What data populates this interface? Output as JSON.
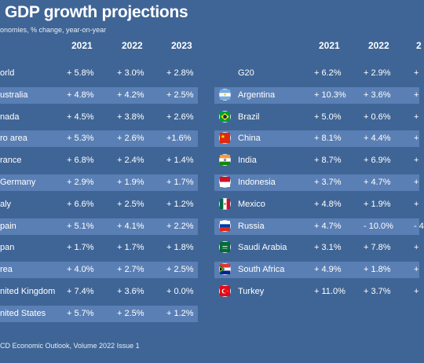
{
  "header": {
    "title": "GDP growth projections",
    "subtitle": "onomies, % change, year-on-year"
  },
  "chart_data": {
    "type": "table",
    "columns": [
      "2021",
      "2022",
      "2023"
    ],
    "right_columns": [
      "2021",
      "2022",
      "2"
    ],
    "left_rows": [
      {
        "name": "orld",
        "values": [
          "+ 5.8%",
          "+ 3.0%",
          "+ 2.8%"
        ]
      },
      {
        "name": "ustralia",
        "values": [
          "+ 4.8%",
          "+ 4.2%",
          "+ 2.5%"
        ]
      },
      {
        "name": "nada",
        "values": [
          "+ 4.5%",
          "+  3.8%",
          "+ 2.6%"
        ]
      },
      {
        "name": "ro area",
        "values": [
          "+ 5.3%",
          "+ 2.6%",
          "+1.6%"
        ]
      },
      {
        "name": "rance",
        "values": [
          "+ 6.8%",
          "+ 2.4%",
          "+ 1.4%"
        ]
      },
      {
        "name": "Germany",
        "values": [
          "+ 2.9%",
          "+ 1.9%",
          "+ 1.7%"
        ]
      },
      {
        "name": "aly",
        "values": [
          "+ 6.6%",
          "+ 2.5%",
          "+ 1.2%"
        ]
      },
      {
        "name": "pain",
        "values": [
          "+ 5.1%",
          "+ 4.1%",
          "+ 2.2%"
        ]
      },
      {
        "name": "pan",
        "values": [
          "+ 1.7%",
          "+ 1.7%",
          "+ 1.8%"
        ]
      },
      {
        "name": "rea",
        "values": [
          "+ 4.0%",
          "+ 2.7%",
          "+ 2.5%"
        ]
      },
      {
        "name": "nited Kingdom",
        "values": [
          "+ 7.4%",
          "+ 3.6%",
          "+ 0.0%"
        ]
      },
      {
        "name": "nited States",
        "values": [
          "+ 5.7%",
          "+ 2.5%",
          "+ 1.2%"
        ]
      }
    ],
    "right_rows": [
      {
        "name": "G20",
        "flag": "",
        "values": [
          "+ 6.2%",
          "+ 2.9%",
          "+"
        ]
      },
      {
        "name": "Argentina",
        "flag": "argentina",
        "values": [
          "+ 10.3%",
          "+ 3.6%",
          "+"
        ]
      },
      {
        "name": "Brazil",
        "flag": "brazil",
        "values": [
          "+ 5.0%",
          "+ 0.6%",
          "+"
        ]
      },
      {
        "name": "China",
        "flag": "china",
        "values": [
          "+ 8.1%",
          "+ 4.4%",
          "+"
        ]
      },
      {
        "name": "India",
        "flag": "india",
        "values": [
          "+ 8.7%",
          "+ 6.9%",
          "+"
        ]
      },
      {
        "name": "Indonesia",
        "flag": "indonesia",
        "values": [
          "+ 3.7%",
          "+ 4.7%",
          "+"
        ]
      },
      {
        "name": "Mexico",
        "flag": "mexico",
        "values": [
          "+ 4.8%",
          "+ 1.9%",
          "+"
        ]
      },
      {
        "name": "Russia",
        "flag": "russia",
        "values": [
          "+ 4.7%",
          "- 10.0%",
          "- 4"
        ]
      },
      {
        "name": "Saudi Arabia",
        "flag": "saudi-arabia",
        "values": [
          "+ 3.1%",
          "+ 7.8%",
          "+"
        ]
      },
      {
        "name": "South Africa",
        "flag": "south-africa",
        "values": [
          "+ 4.9%",
          "+ 1.8%",
          "+"
        ]
      },
      {
        "name": "Turkey",
        "flag": "turkey",
        "values": [
          "+  11.0%",
          "+ 3.7%",
          "+"
        ]
      }
    ],
    "row_stripe_color": "#5a7fb4",
    "background_color": "#3f6596"
  },
  "footer": {
    "source": "CD Economic Outlook, Volume 2022 Issue 1"
  }
}
